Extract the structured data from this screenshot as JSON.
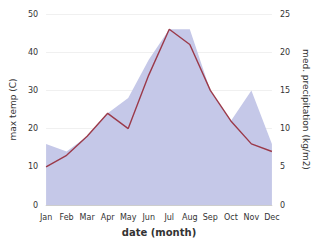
{
  "chart_data": {
    "type": "line",
    "xlabel": "date (month)",
    "ylabel": "max temp (C)",
    "y2label": "med. precipitation (kg/m2)",
    "categories": [
      "Jan",
      "Feb",
      "Mar",
      "Apr",
      "May",
      "Jun",
      "Jul",
      "Aug",
      "Sep",
      "Oct",
      "Nov",
      "Dec"
    ],
    "series": [
      {
        "type": "area",
        "color": "#c5c8e8",
        "axis": "y2",
        "values": [
          8,
          7,
          9,
          12,
          14,
          19,
          23,
          23,
          15,
          11,
          15,
          8
        ]
      },
      {
        "type": "line",
        "color": "#9b3a4a",
        "values": [
          10,
          13,
          18,
          24,
          20,
          34,
          46,
          42,
          30,
          22,
          16,
          14
        ]
      }
    ],
    "ylim": [
      0,
      50
    ],
    "yticks": [
      0,
      10,
      20,
      30,
      40,
      50
    ],
    "y2lim": [
      0,
      25
    ],
    "y2ticks": [
      0,
      5,
      10,
      15,
      20,
      25
    ],
    "grid": true
  }
}
